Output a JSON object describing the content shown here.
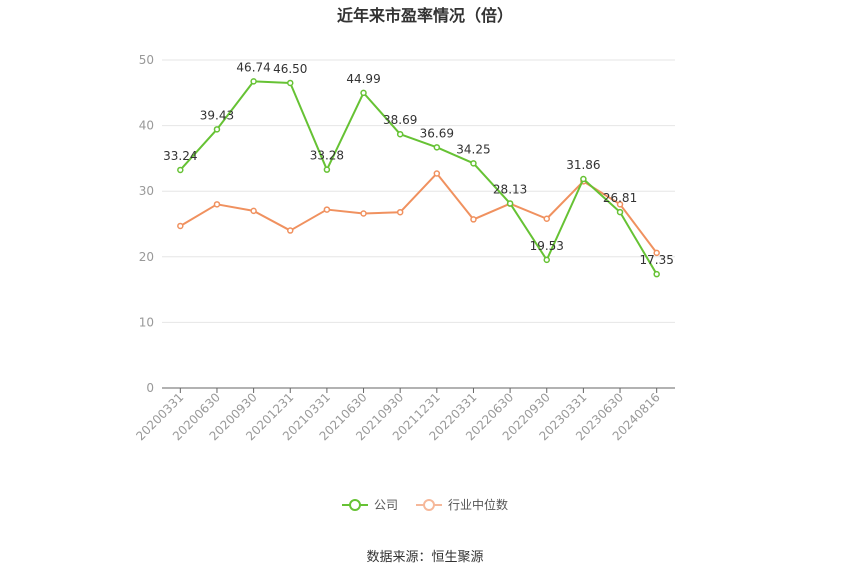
{
  "title": "近年来市盈率情况（倍）",
  "source": "数据来源：恒生聚源",
  "chart_data": {
    "type": "line",
    "categories": [
      "20200331",
      "20200630",
      "20200930",
      "20201231",
      "20210331",
      "20210630",
      "20210930",
      "20211231",
      "20220331",
      "20220630",
      "20220930",
      "20230331",
      "20230630",
      "20240816"
    ],
    "ylim": [
      0,
      50
    ],
    "yticks": [
      0,
      10,
      20,
      30,
      40,
      50
    ],
    "grid": true,
    "legend_position": "bottom",
    "series": [
      {
        "name": "公司",
        "color": "#66c234",
        "show_labels": true,
        "values": [
          33.24,
          39.43,
          46.74,
          46.5,
          33.28,
          44.99,
          38.69,
          36.69,
          34.25,
          28.13,
          19.53,
          31.86,
          26.81,
          17.35
        ]
      },
      {
        "name": "行业中位数",
        "color": "#f0915f",
        "show_labels": false,
        "values": [
          24.7,
          28.0,
          27.0,
          24.0,
          27.2,
          26.6,
          26.8,
          32.7,
          25.7,
          28.1,
          25.8,
          31.5,
          28.0,
          20.6
        ]
      }
    ]
  }
}
